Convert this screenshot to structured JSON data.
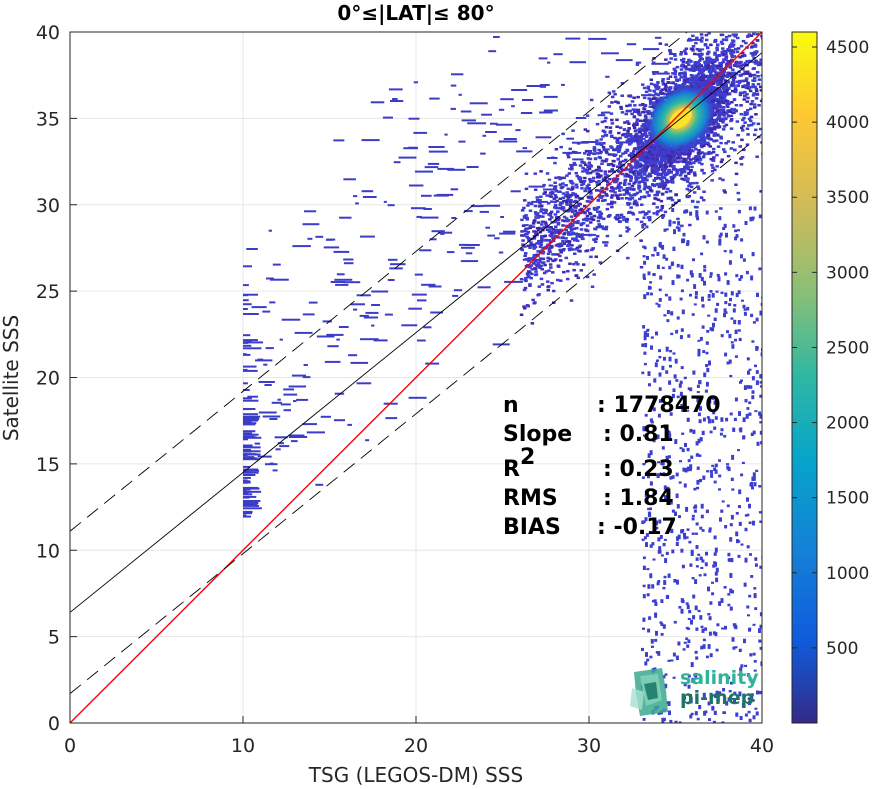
{
  "chart_data": {
    "type": "heatmap",
    "title": "0°≤|LAT|≤ 80°",
    "xlabel": "TSG (LEGOS-DM) SSS",
    "ylabel": "Satellite SSS",
    "xlim": [
      0,
      40
    ],
    "ylim": [
      0,
      40
    ],
    "xticks": [
      "0",
      "10",
      "20",
      "30",
      "40"
    ],
    "yticks": [
      "0",
      "5",
      "10",
      "15",
      "20",
      "25",
      "30",
      "35",
      "40"
    ],
    "grid": true,
    "colorbar": {
      "range": [
        0,
        4600
      ],
      "ticks": [
        "500",
        "1000",
        "1500",
        "2000",
        "2500",
        "3000",
        "3500",
        "4000",
        "4500"
      ],
      "colormap": "parula"
    },
    "density_peak": {
      "x": 35.3,
      "y": 35.0,
      "count": 4500
    },
    "lines": [
      {
        "name": "identity",
        "color": "#ff0000",
        "style": "solid",
        "x": [
          0,
          40
        ],
        "y": [
          0,
          40
        ]
      },
      {
        "name": "regression",
        "color": "#000000",
        "style": "solid",
        "slope": 0.81,
        "intercept": 6.4
      },
      {
        "name": "regression-upper",
        "color": "#000000",
        "style": "dashed",
        "slope": 0.81,
        "intercept": 11.1
      },
      {
        "name": "regression-lower",
        "color": "#000000",
        "style": "dashed",
        "slope": 0.81,
        "intercept": 1.7
      }
    ],
    "stats": [
      {
        "label": "n",
        "value": ": 1778470"
      },
      {
        "label": "Slope",
        "value": ": 0.81"
      },
      {
        "label": "R",
        "sup": "2",
        "value": ": 0.23"
      },
      {
        "label": "RMS",
        "value": ": 1.84"
      },
      {
        "label": "BIAS",
        "value": ": -0.17"
      }
    ]
  },
  "logo": {
    "line1": "salinity",
    "line2": "pi-mep"
  }
}
